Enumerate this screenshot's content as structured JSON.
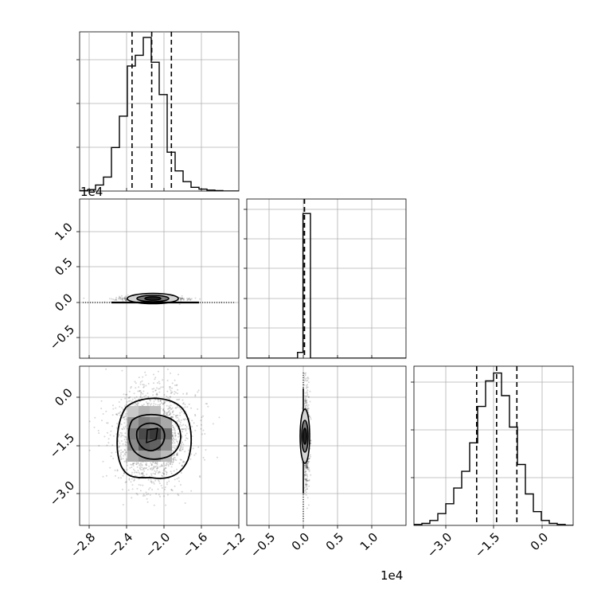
{
  "chart_data": {
    "type": "corner",
    "parameters": 3,
    "grid": true,
    "bottom_tick_labels": {
      "x0": [
        "−2.8",
        "−2.4",
        "−2.0",
        "−1.6",
        "−1.2"
      ],
      "x1": [
        "−0.5",
        "0.0",
        "0.5",
        "1.0"
      ],
      "x2": [
        "−3.0",
        "−1.5",
        "0.0"
      ]
    },
    "left_tick_labels": {
      "x1": [
        "−0.5",
        "0.0",
        "0.5",
        "1.0"
      ],
      "x2": [
        "−3.0",
        "−1.5",
        "0.0"
      ]
    },
    "offset_labels": {
      "x0_axis": "1e4",
      "x1_axis": "1e4"
    },
    "panels": [
      {
        "id": "hist-x0",
        "type": "histogram",
        "xlim": [
          -2.85,
          -1.15
        ],
        "bin_edges": [
          -2.85,
          -2.765,
          -2.68,
          -2.595,
          -2.51,
          -2.425,
          -2.34,
          -2.255,
          -2.17,
          -2.085,
          -2.0,
          -1.915,
          -1.83,
          -1.745,
          -1.66,
          -1.575,
          -1.49,
          -1.405,
          -1.32,
          -1.235,
          -1.15
        ],
        "counts": [
          1,
          3,
          13,
          30,
          93,
          160,
          267,
          290,
          328,
          275,
          206,
          83,
          43,
          20,
          8,
          4,
          2,
          1,
          0,
          0
        ],
        "ymax": 340,
        "quantiles": [
          -2.29,
          -2.08,
          -1.87
        ]
      },
      {
        "id": "scatter-x0-x1",
        "type": "scatter-contour",
        "xlim": [
          -2.85,
          -1.15
        ],
        "ylim": [
          -0.8,
          1.45
        ],
        "center": [
          -2.08,
          0.04
        ]
      },
      {
        "id": "hist-x1",
        "type": "histogram",
        "xlim": [
          -0.85,
          1.5
        ],
        "bin_edges": [
          -0.85,
          -0.1,
          -0.02,
          0.09,
          1.5
        ],
        "counts": [
          0,
          4,
          100,
          0
        ],
        "ymax": 110,
        "quantiles": [
          0.0,
          0.0,
          0.0
        ]
      },
      {
        "id": "scatter-x0-x2",
        "type": "scatter-contour",
        "xlim": [
          -2.85,
          -1.15
        ],
        "ylim": [
          -4.0,
          0.95
        ],
        "center": [
          -2.07,
          -1.2
        ]
      },
      {
        "id": "scatter-x1-x2",
        "type": "scatter-contour",
        "xlim": [
          -0.85,
          1.5
        ],
        "ylim": [
          -4.0,
          0.95
        ],
        "center": [
          0.03,
          -1.25
        ]
      },
      {
        "id": "hist-x2",
        "type": "histogram",
        "xlim": [
          -4.0,
          0.95
        ],
        "bin_edges": [
          -4.0,
          -3.7525,
          -3.505,
          -3.2575,
          -3.01,
          -2.7625,
          -2.515,
          -2.2675,
          -2.02,
          -1.7725,
          -1.525,
          -1.2775,
          -1.03,
          -0.7825,
          -0.535,
          -0.2875,
          -0.04,
          0.2075,
          0.455,
          0.7025,
          0.95
        ],
        "counts": [
          1,
          2,
          5,
          12,
          22,
          38,
          55,
          84,
          121,
          147,
          155,
          132,
          100,
          62,
          32,
          14,
          5,
          2,
          1,
          0
        ],
        "ymax": 162,
        "quantiles": [
          -2.05,
          -1.43,
          -0.8
        ]
      }
    ]
  }
}
